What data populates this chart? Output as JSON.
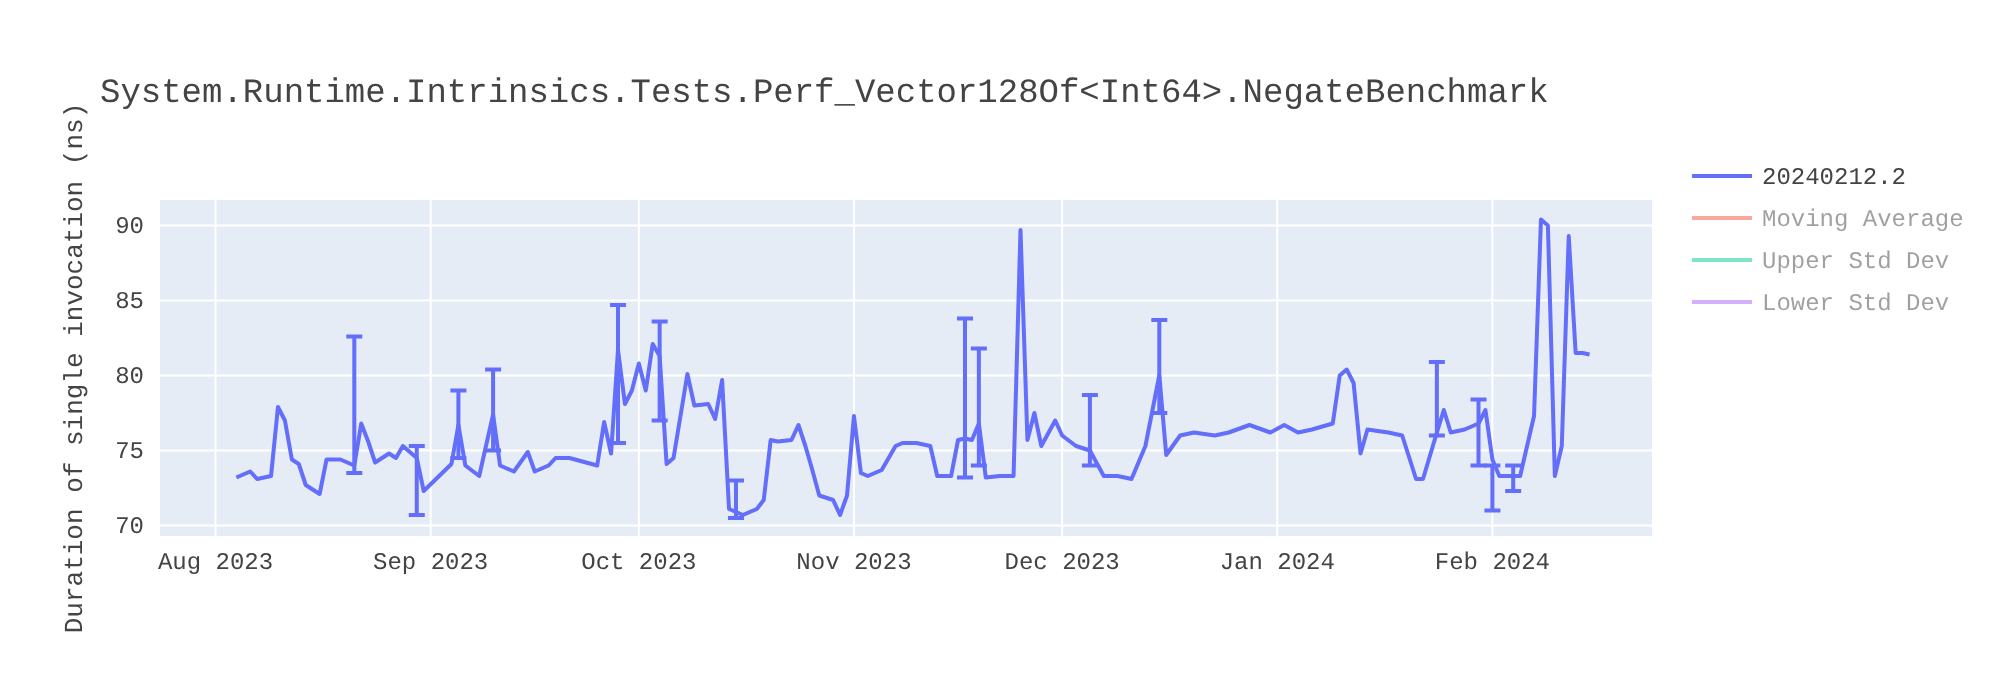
{
  "chart_data": {
    "type": "line",
    "title": "System.Runtime.Intrinsics.Tests.Perf_Vector128Of<Int64>.NegateBenchmark",
    "ylabel": "Duration of single invocation (ns)",
    "xlim": [
      "2023-07-24",
      "2024-02-24"
    ],
    "xticks": [
      {
        "value": "2023-08-01",
        "label": "Aug 2023"
      },
      {
        "value": "2023-09-01",
        "label": "Sep 2023"
      },
      {
        "value": "2023-10-01",
        "label": "Oct 2023"
      },
      {
        "value": "2023-11-01",
        "label": "Nov 2023"
      },
      {
        "value": "2023-12-01",
        "label": "Dec 2023"
      },
      {
        "value": "2024-01-01",
        "label": "Jan 2024"
      },
      {
        "value": "2024-02-01",
        "label": "Feb 2024"
      }
    ],
    "ylim": [
      69.3,
      91.7
    ],
    "yticks": [
      70,
      75,
      80,
      85,
      90
    ],
    "grid": true,
    "legend": "top right",
    "line_style": "solid",
    "series": [
      {
        "name": "20240212.2",
        "color": "#636efa",
        "x": [
          "2023-08-04",
          "2023-08-06",
          "2023-08-07",
          "2023-08-09",
          "2023-08-10",
          "2023-08-11",
          "2023-08-12",
          "2023-08-13",
          "2023-08-14",
          "2023-08-16",
          "2023-08-17",
          "2023-08-19",
          "2023-08-21",
          "2023-08-22",
          "2023-08-23",
          "2023-08-24",
          "2023-08-26",
          "2023-08-27",
          "2023-08-28",
          "2023-08-30",
          "2023-08-31",
          "2023-09-04",
          "2023-09-05",
          "2023-09-06",
          "2023-09-08",
          "2023-09-10",
          "2023-09-11",
          "2023-09-13",
          "2023-09-15",
          "2023-09-16",
          "2023-09-18",
          "2023-09-19",
          "2023-09-21",
          "2023-09-25",
          "2023-09-26",
          "2023-09-27",
          "2023-09-28",
          "2023-09-29",
          "2023-09-30",
          "2023-10-01",
          "2023-10-02",
          "2023-10-03",
          "2023-10-04",
          "2023-10-05",
          "2023-10-06",
          "2023-10-07",
          "2023-10-08",
          "2023-10-09",
          "2023-10-11",
          "2023-10-12",
          "2023-10-13",
          "2023-10-14",
          "2023-10-15",
          "2023-10-16",
          "2023-10-18",
          "2023-10-19",
          "2023-10-20",
          "2023-10-21",
          "2023-10-23",
          "2023-10-24",
          "2023-10-25",
          "2023-10-26",
          "2023-10-27",
          "2023-10-29",
          "2023-10-30",
          "2023-10-31",
          "2023-11-01",
          "2023-11-02",
          "2023-11-03",
          "2023-11-05",
          "2023-11-07",
          "2023-11-08",
          "2023-11-10",
          "2023-11-12",
          "2023-11-13",
          "2023-11-15",
          "2023-11-16",
          "2023-11-17",
          "2023-11-18",
          "2023-11-19",
          "2023-11-20",
          "2023-11-22",
          "2023-11-24",
          "2023-11-25",
          "2023-11-26",
          "2023-11-27",
          "2023-11-28",
          "2023-11-30",
          "2023-12-01",
          "2023-12-03",
          "2023-12-05",
          "2023-12-07",
          "2023-12-09",
          "2023-12-11",
          "2023-12-13",
          "2023-12-15",
          "2023-12-16",
          "2023-12-18",
          "2023-12-20",
          "2023-12-23",
          "2023-12-25",
          "2023-12-28",
          "2023-12-31",
          "2024-01-02",
          "2024-01-04",
          "2024-01-06",
          "2024-01-09",
          "2024-01-10",
          "2024-01-11",
          "2024-01-12",
          "2024-01-13",
          "2024-01-14",
          "2024-01-17",
          "2024-01-19",
          "2024-01-21",
          "2024-01-22",
          "2024-01-24",
          "2024-01-25",
          "2024-01-26",
          "2024-01-28",
          "2024-01-30",
          "2024-01-31",
          "2024-02-01",
          "2024-02-02",
          "2024-02-04",
          "2024-02-05",
          "2024-02-07",
          "2024-02-08",
          "2024-02-09",
          "2024-02-10",
          "2024-02-11",
          "2024-02-12",
          "2024-02-13",
          "2024-02-14",
          "2024-02-15"
        ],
        "values": [
          73.2,
          73.6,
          73.1,
          73.3,
          77.9,
          77.0,
          74.4,
          74.1,
          72.7,
          72.1,
          74.4,
          74.4,
          74.0,
          76.8,
          75.6,
          74.2,
          74.8,
          74.5,
          75.3,
          74.5,
          72.3,
          74.1,
          76.7,
          74.0,
          73.3,
          77.4,
          74.0,
          73.6,
          74.9,
          73.6,
          74.0,
          74.5,
          74.5,
          74.0,
          76.9,
          74.8,
          81.7,
          78.1,
          79.0,
          80.8,
          79.0,
          82.1,
          81.3,
          74.1,
          74.5,
          77.3,
          80.1,
          78.0,
          78.1,
          77.1,
          79.7,
          71.1,
          70.9,
          70.7,
          71.1,
          71.7,
          75.7,
          75.6,
          75.7,
          76.7,
          75.3,
          73.7,
          72.0,
          71.7,
          70.7,
          72.0,
          77.3,
          73.5,
          73.3,
          73.7,
          75.3,
          75.5,
          75.5,
          75.3,
          73.3,
          73.3,
          75.7,
          75.8,
          75.7,
          76.8,
          73.2,
          73.3,
          73.3,
          89.7,
          75.7,
          77.5,
          75.3,
          77.0,
          76.0,
          75.3,
          75.0,
          73.3,
          73.3,
          73.1,
          75.3,
          80.0,
          74.7,
          76.0,
          76.2,
          76.0,
          76.2,
          76.7,
          76.2,
          76.7,
          76.2,
          76.4,
          76.8,
          80.0,
          80.4,
          79.5,
          74.8,
          76.4,
          76.2,
          76.0,
          73.1,
          73.1,
          76.2,
          77.7,
          76.2,
          76.4,
          76.8,
          77.7,
          74.4,
          73.3,
          73.3,
          73.3,
          77.3,
          90.4,
          90.0,
          73.3,
          75.3,
          89.3,
          81.5,
          81.5,
          81.4
        ],
        "errors": [
          null,
          null,
          null,
          null,
          null,
          null,
          null,
          null,
          null,
          null,
          null,
          null,
          [
            73.5,
            82.6
          ],
          null,
          null,
          null,
          null,
          null,
          null,
          [
            70.7,
            75.3
          ],
          null,
          null,
          [
            74.5,
            79.0
          ],
          null,
          null,
          [
            75.0,
            80.4
          ],
          null,
          null,
          null,
          null,
          null,
          null,
          null,
          null,
          null,
          null,
          [
            75.5,
            84.7
          ],
          null,
          null,
          null,
          null,
          null,
          [
            77.0,
            83.6
          ],
          null,
          null,
          null,
          null,
          null,
          null,
          null,
          null,
          null,
          [
            70.5,
            73.0
          ],
          null,
          null,
          null,
          null,
          null,
          null,
          null,
          null,
          null,
          null,
          null,
          null,
          null,
          null,
          null,
          null,
          null,
          null,
          null,
          null,
          null,
          null,
          null,
          null,
          [
            73.2,
            83.8
          ],
          null,
          [
            74.0,
            81.8
          ],
          null,
          null,
          null,
          null,
          null,
          null,
          null,
          null,
          null,
          null,
          [
            74.0,
            78.7
          ],
          null,
          null,
          null,
          null,
          [
            77.5,
            83.7
          ],
          null,
          null,
          null,
          null,
          null,
          null,
          null,
          null,
          null,
          null,
          null,
          null,
          null,
          null,
          null,
          null,
          null,
          null,
          null,
          null,
          [
            76.0,
            80.9
          ],
          null,
          null,
          null,
          [
            74.0,
            78.4
          ],
          null,
          [
            71.0,
            74.0
          ],
          null,
          [
            72.3,
            74.0
          ],
          null,
          null,
          null,
          null,
          null,
          null,
          null,
          null,
          null,
          null
        ]
      },
      {
        "name": "Moving Average",
        "color": "#ef553b"
      },
      {
        "name": "Upper Std Dev",
        "color": "#00cc96"
      },
      {
        "name": "Lower Std Dev",
        "color": "#ab63fa"
      }
    ]
  }
}
